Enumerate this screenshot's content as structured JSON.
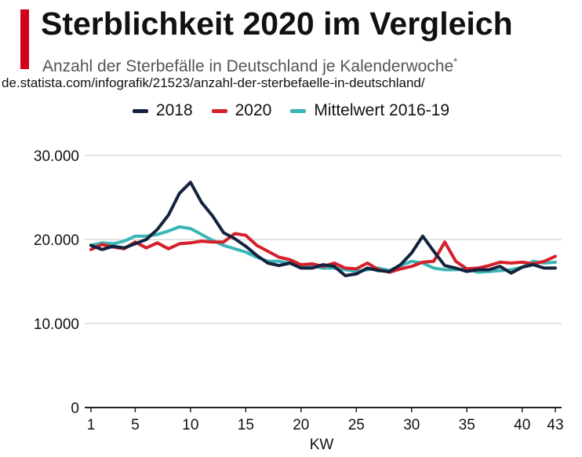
{
  "header": {
    "title": "Sterblichkeit 2020 im Vergleich",
    "subtitle": "Anzahl der Sterbefälle in Deutschland je Kalenderwoche",
    "subtitle_mark": "*",
    "source_url": "de.statista.com/infografik/21523/anzahl-der-sterbefaelle-in-deutschland/"
  },
  "colors": {
    "accent": "#d0021b",
    "series_2018": "#13233d",
    "series_2020": "#d51f2b",
    "series_mean": "#3bb5b5",
    "grid": "#c8c8c8"
  },
  "chart_data": {
    "type": "line",
    "title": "Sterblichkeit 2020 im Vergleich",
    "subtitle": "Anzahl der Sterbefälle in Deutschland je Kalenderwoche",
    "xlabel": "KW",
    "ylabel": "",
    "xlim": [
      1,
      43
    ],
    "ylim": [
      0,
      30000
    ],
    "x_ticks": [
      1,
      5,
      10,
      15,
      20,
      25,
      30,
      35,
      40,
      43
    ],
    "y_ticks": [
      0,
      10000,
      20000,
      30000
    ],
    "y_tick_labels": [
      "0",
      "10.000",
      "20.000",
      "30.000"
    ],
    "grid": true,
    "legend_position": "top",
    "x": [
      1,
      2,
      3,
      4,
      5,
      6,
      7,
      8,
      9,
      10,
      11,
      12,
      13,
      14,
      15,
      16,
      17,
      18,
      19,
      20,
      21,
      22,
      23,
      24,
      25,
      26,
      27,
      28,
      29,
      30,
      31,
      32,
      33,
      34,
      35,
      36,
      37,
      38,
      39,
      40,
      41,
      42,
      43
    ],
    "series": [
      {
        "name": "2018",
        "values": [
          19300,
          18800,
          19200,
          19000,
          19500,
          20000,
          21200,
          22900,
          25500,
          26800,
          24400,
          22800,
          20800,
          20100,
          19200,
          18100,
          17200,
          16900,
          17200,
          16600,
          16600,
          17000,
          16800,
          15700,
          15900,
          16600,
          16300,
          16200,
          17000,
          18400,
          20400,
          18600,
          16900,
          16600,
          16200,
          16400,
          16400,
          16800,
          16000,
          16700,
          17000,
          16600,
          16600
        ]
      },
      {
        "name": "2020",
        "values": [
          18800,
          19400,
          19100,
          18900,
          19700,
          19000,
          19600,
          18900,
          19500,
          19600,
          19800,
          19700,
          19700,
          20700,
          20500,
          19300,
          18600,
          17900,
          17600,
          17000,
          17100,
          16800,
          17200,
          16600,
          16500,
          17200,
          16400,
          16100,
          16500,
          16800,
          17300,
          17400,
          19700,
          17400,
          16500,
          16600,
          16900,
          17300,
          17200,
          17300,
          17100,
          17400,
          18000
        ]
      },
      {
        "name": "Mittelwert 2016-19",
        "values": [
          19300,
          19600,
          19500,
          19800,
          20400,
          20400,
          20600,
          21000,
          21500,
          21300,
          20600,
          19900,
          19300,
          18900,
          18500,
          17900,
          17400,
          17400,
          17200,
          16800,
          16800,
          16600,
          16600,
          16400,
          16200,
          16400,
          16600,
          16300,
          16900,
          17400,
          17200,
          16600,
          16400,
          16400,
          16500,
          16100,
          16200,
          16300,
          16400,
          16700,
          17400,
          17200,
          17300
        ]
      }
    ]
  }
}
